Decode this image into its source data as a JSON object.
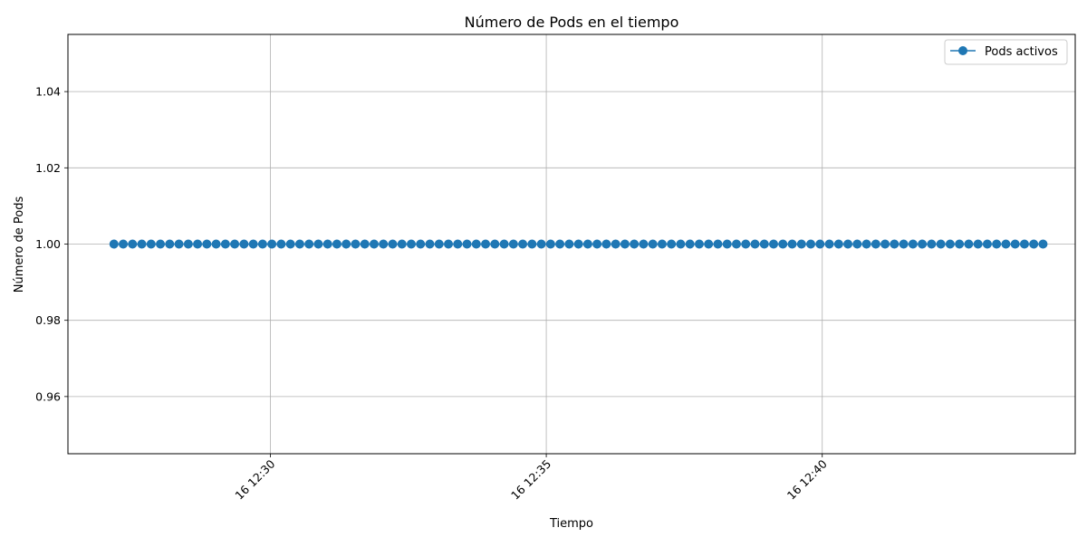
{
  "chart_data": {
    "type": "line",
    "title": "Número de Pods en el tiempo",
    "xlabel": "Tiempo",
    "ylabel": "Número de Pods",
    "x_range": [
      "2000-01-16T12:26:20",
      "2000-01-16T12:44:35"
    ],
    "ylim": [
      0.945,
      1.055
    ],
    "x_ticks": [
      {
        "time": "2000-01-16T12:30:00",
        "label": "16 12:30"
      },
      {
        "time": "2000-01-16T12:35:00",
        "label": "16 12:35"
      },
      {
        "time": "2000-01-16T12:40:00",
        "label": "16 12:40"
      }
    ],
    "y_ticks": [
      {
        "value": 0.96,
        "label": "0.96"
      },
      {
        "value": 0.98,
        "label": "0.98"
      },
      {
        "value": 1.0,
        "label": "1.00"
      },
      {
        "value": 1.02,
        "label": "1.02"
      },
      {
        "value": 1.04,
        "label": "1.04"
      }
    ],
    "grid": true,
    "legend_position": "top-right",
    "series": [
      {
        "name": "Pods activos",
        "color": "#1f77b4",
        "marker": "circle",
        "start_time": "2000-01-16T12:27:10",
        "end_time": "2000-01-16T12:44:00",
        "point_count": 101,
        "value": 1.0
      }
    ]
  }
}
